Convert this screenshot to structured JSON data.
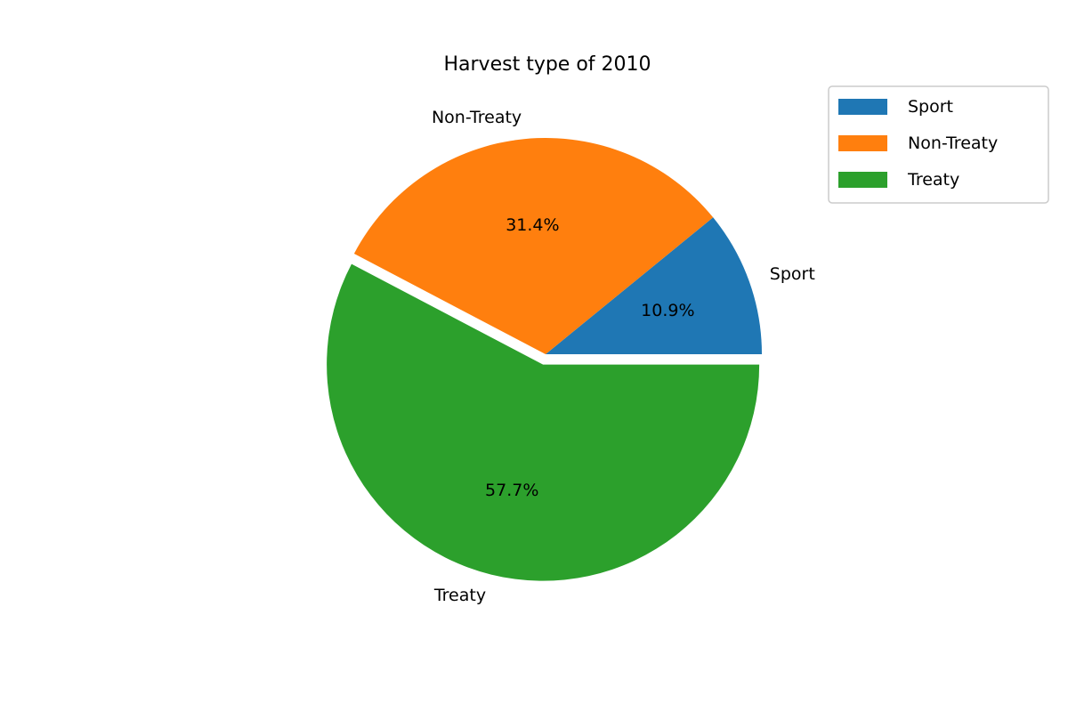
{
  "chart_data": {
    "type": "pie",
    "title": "Harvest type of 2010",
    "categories": [
      "Sport",
      "Non-Treaty",
      "Treaty"
    ],
    "values": [
      10.9,
      31.4,
      57.7
    ],
    "value_labels": [
      "10.9%",
      "31.4%",
      "57.7%"
    ],
    "colors": [
      "#1f77b4",
      "#ff7f0e",
      "#2ca02c"
    ],
    "exploded": [
      false,
      false,
      true
    ],
    "start_angle_deg": 0,
    "direction": "counterclockwise",
    "legend": {
      "placement": "top-right",
      "entries": [
        "Sport",
        "Non-Treaty",
        "Treaty"
      ]
    }
  }
}
